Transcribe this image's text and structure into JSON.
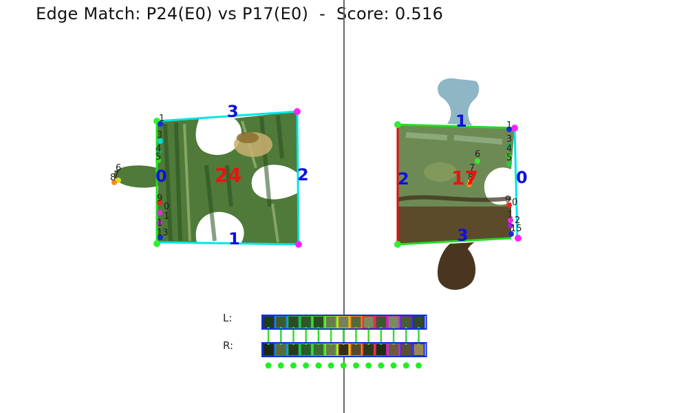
{
  "title": "Edge Match: P24(E0) vs P17(E0)  -  Score: 0.516",
  "colors": {
    "divider": "#666666",
    "outline_left": "#00e5e5",
    "outline_right_top": "#22dd22",
    "outline_right_left": "#e01010",
    "outline_right_right": "#00e5e5",
    "corner_magenta": "#ff22ff",
    "corner_green": "#33ee33",
    "piece_number": "#ee1111",
    "edge_number": "#1010dd",
    "match_line": "#33dd33",
    "dot": "#22ee22"
  },
  "left_piece": {
    "number": "24",
    "edge_labels": [
      "0",
      "1",
      "2",
      "3"
    ],
    "point_labels": [
      "1",
      "3",
      "4",
      "5",
      "6",
      "7",
      "8",
      "9",
      "0",
      "1",
      "1",
      "13"
    ]
  },
  "right_piece": {
    "number": "17",
    "edge_labels": [
      "0",
      "1",
      "2",
      "3"
    ],
    "point_labels": [
      "1",
      "3",
      "4",
      "5",
      "6",
      "7",
      "8",
      "9",
      "0",
      "1",
      "2",
      "15"
    ]
  },
  "strip": {
    "left_label": "L:",
    "right_label": "R:",
    "left_swatches": [
      {
        "fill": "#1f3a1c",
        "border": "#1030d0"
      },
      {
        "fill": "#3d5a2e",
        "border": "#0a88dd"
      },
      {
        "fill": "#2d4a25",
        "border": "#22aa55"
      },
      {
        "fill": "#30562a",
        "border": "#22cc44"
      },
      {
        "fill": "#2a4e24",
        "border": "#33dd22"
      },
      {
        "fill": "#667d4c",
        "border": "#88dd22"
      },
      {
        "fill": "#76805a",
        "border": "#ddcc11"
      },
      {
        "fill": "#556a3a",
        "border": "#ff8811"
      },
      {
        "fill": "#7a8a5e",
        "border": "#ee2222"
      },
      {
        "fill": "#3a5a2c",
        "border": "#cc22aa"
      },
      {
        "fill": "#7c8a60",
        "border": "#bb33cc"
      },
      {
        "fill": "#4a5c34",
        "border": "#6622cc"
      },
      {
        "fill": "#34482a",
        "border": "#1030d0"
      }
    ],
    "right_swatches": [
      {
        "fill": "#1a2a14",
        "border": "#1030d0"
      },
      {
        "fill": "#5a6a3c",
        "border": "#0a88dd"
      },
      {
        "fill": "#2a3a1c",
        "border": "#22aa55"
      },
      {
        "fill": "#2c5a2a",
        "border": "#22cc44"
      },
      {
        "fill": "#3c6a34",
        "border": "#33dd22"
      },
      {
        "fill": "#6a7a4a",
        "border": "#88dd22"
      },
      {
        "fill": "#3a2a18",
        "border": "#ddcc11"
      },
      {
        "fill": "#5a4a2a",
        "border": "#ff8811"
      },
      {
        "fill": "#2a3a1c",
        "border": "#ee2222"
      },
      {
        "fill": "#1e2e16",
        "border": "#cc22aa"
      },
      {
        "fill": "#6a5a3a",
        "border": "#bb33cc"
      },
      {
        "fill": "#5a4e36",
        "border": "#6622cc"
      },
      {
        "fill": "#9a8456",
        "border": "#1030d0"
      }
    ]
  }
}
